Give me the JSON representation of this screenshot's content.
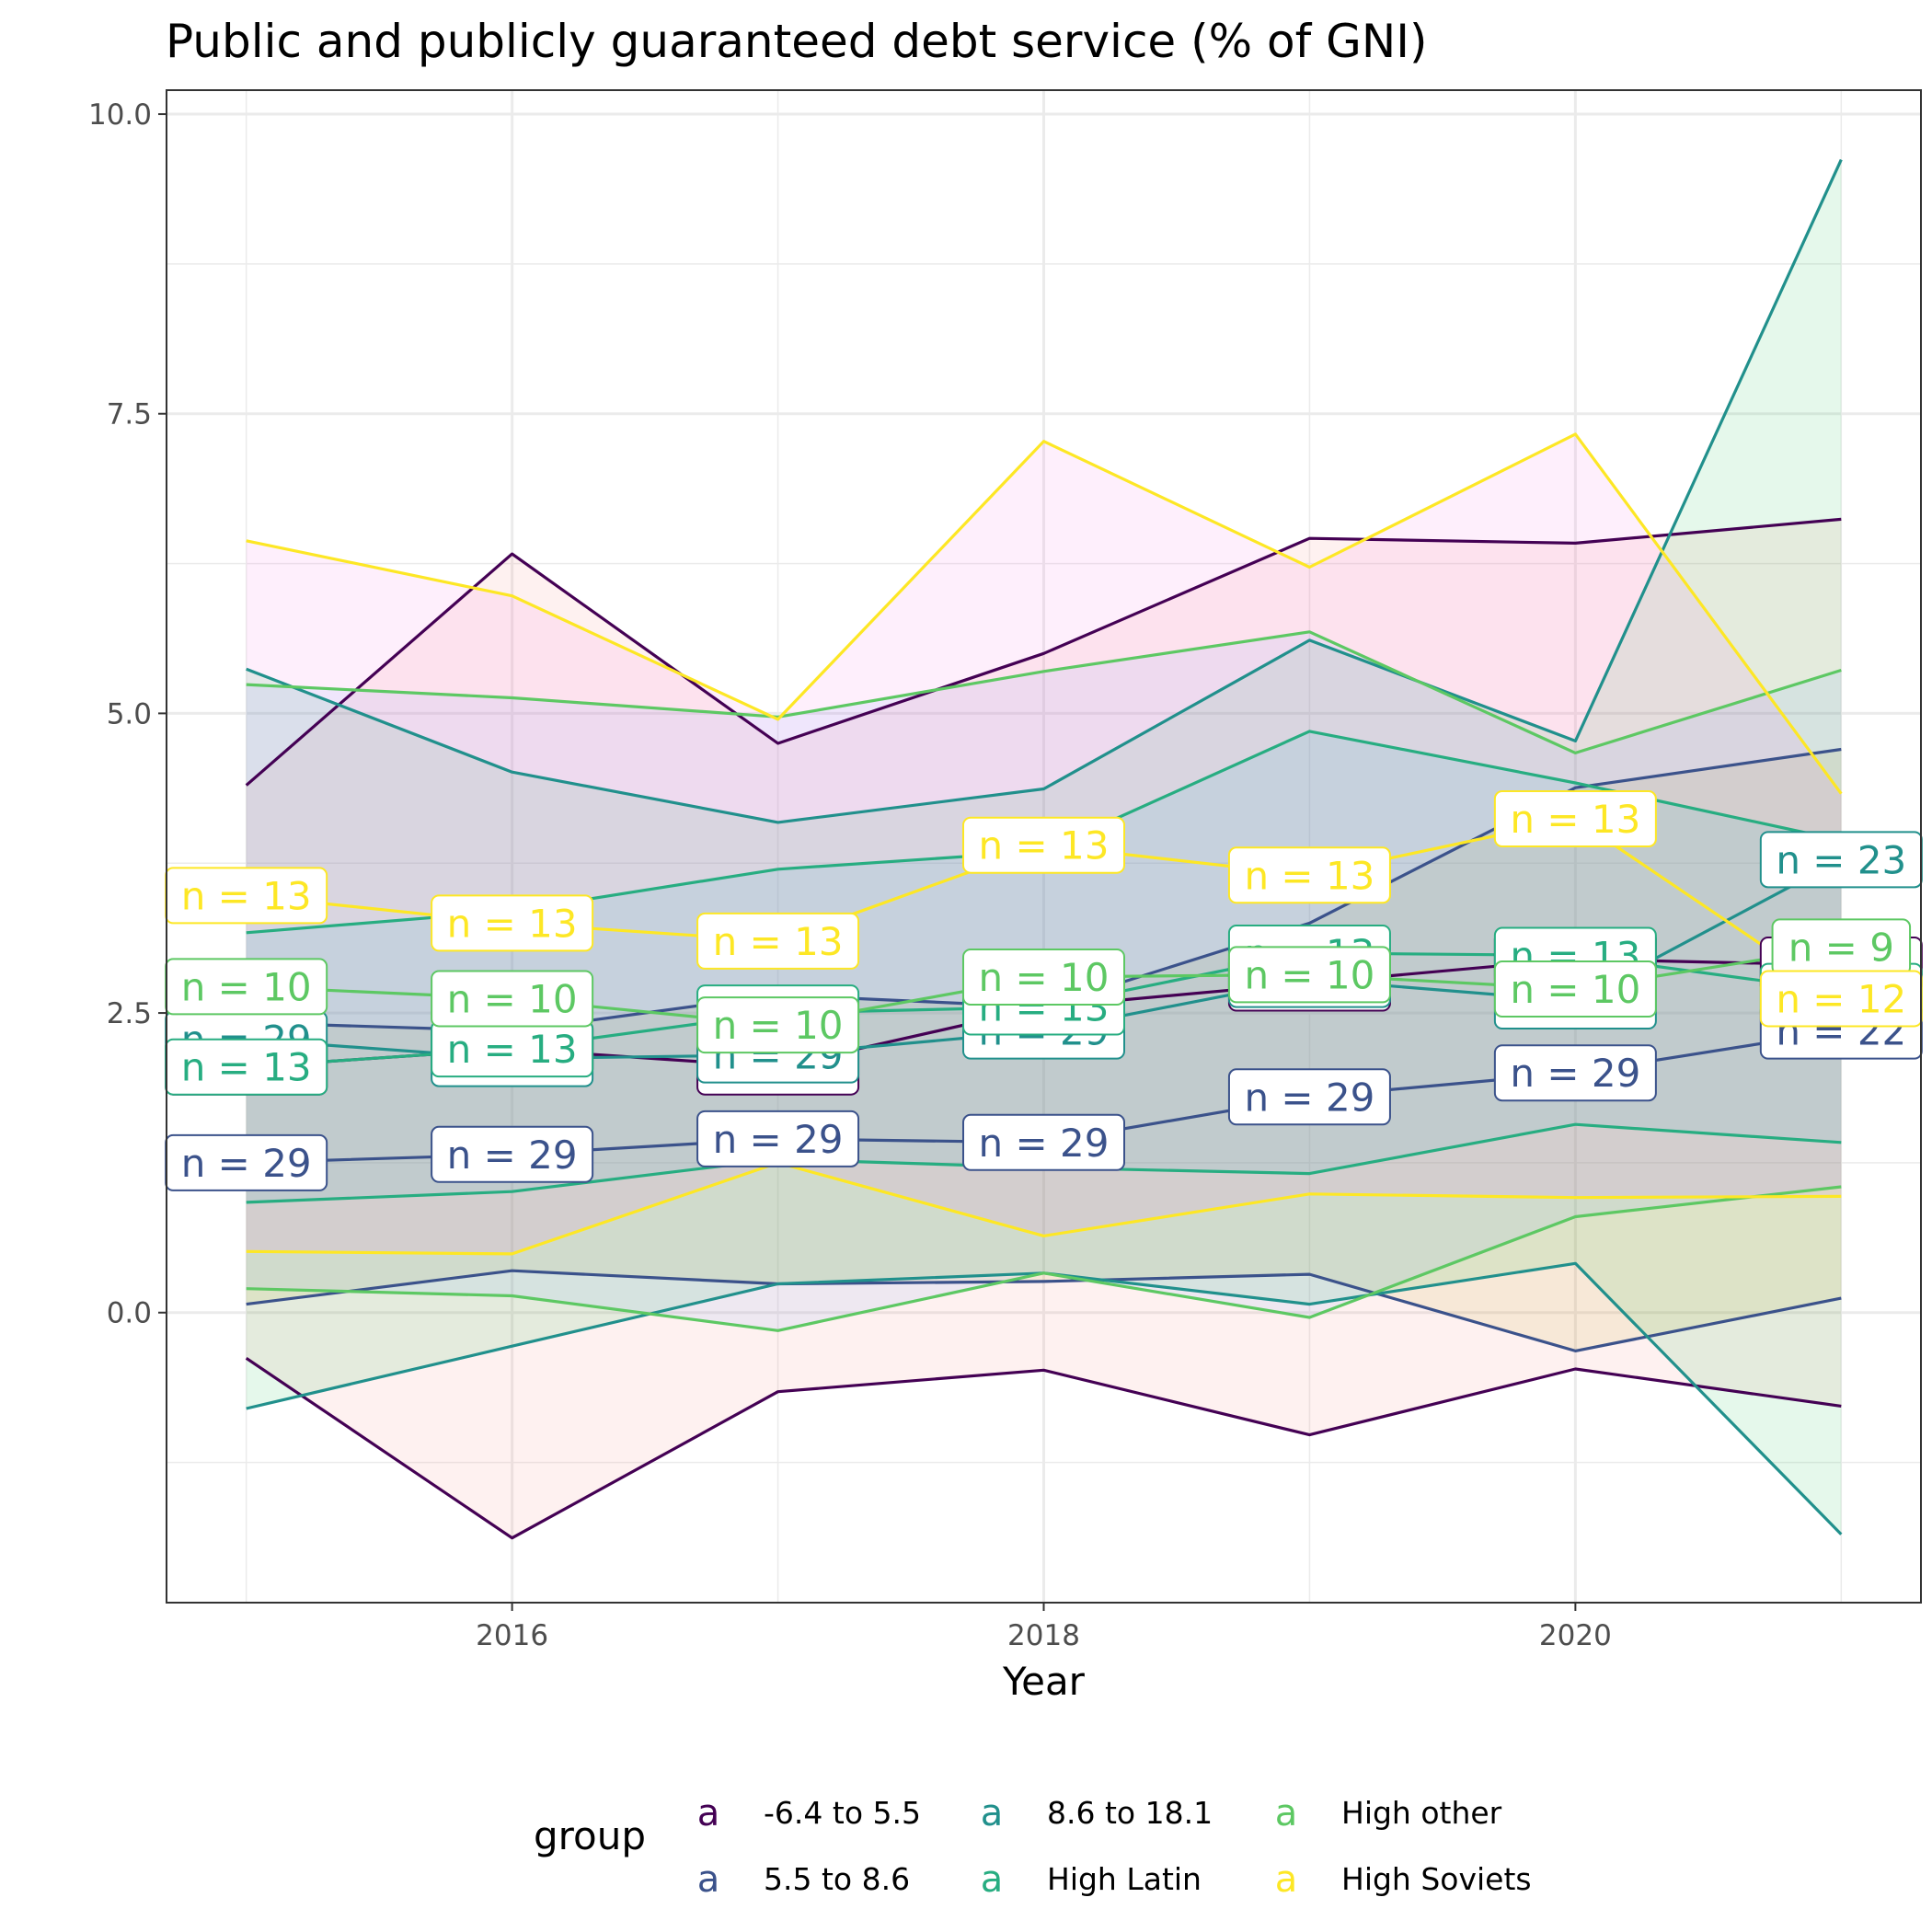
{
  "chart_data": {
    "type": "line",
    "title": "Public and publicly guaranteed debt service (% of GNI)",
    "xlabel": "Year",
    "ylabel": "",
    "xlim": [
      2014.7,
      2021.3
    ],
    "ylim": [
      -2.42,
      10.2
    ],
    "x_ticks": [
      2016,
      2018,
      2020
    ],
    "x_tick_labels": [
      "2016",
      "2018",
      "2020"
    ],
    "y_ticks": [
      0,
      2.5,
      5,
      7.5,
      10
    ],
    "y_tick_labels": [
      "0.0",
      "2.5",
      "5.0",
      "7.5",
      "10.0"
    ],
    "y_minor_ticks": [
      -1.25,
      1.25,
      3.75,
      6.25,
      8.75
    ],
    "grid": true,
    "legend": {
      "title": "group",
      "position": "bottom",
      "key_glyph": "a"
    },
    "x": [
      2015,
      2016,
      2017,
      2018,
      2019,
      2020,
      2021
    ],
    "series": [
      {
        "name": "-6.4 to 5.5",
        "color": "#440154",
        "fill": "#F8766D",
        "mean": [
          2.05,
          2.2,
          2.05,
          2.55,
          2.75,
          2.95,
          2.9
        ],
        "upper": [
          4.4,
          6.33,
          4.75,
          5.5,
          6.46,
          6.42,
          6.62
        ],
        "lower": [
          -0.38,
          -1.88,
          -0.66,
          -0.48,
          -1.02,
          -0.47,
          -0.78
        ],
        "n_labels": [
          "n = 29",
          "n = 29",
          "n = 29",
          "n = 29",
          "n = 29",
          "n = 29",
          "n = 18"
        ]
      },
      {
        "name": "5.5 to 8.6",
        "color": "#3B528B",
        "fill": "#B79F00",
        "mean": [
          1.25,
          1.32,
          1.45,
          1.42,
          1.8,
          2.0,
          2.35
        ],
        "upper": [
          2.42,
          2.35,
          2.65,
          2.55,
          3.25,
          4.38,
          4.7
        ],
        "lower": [
          0.07,
          0.35,
          0.24,
          0.26,
          0.32,
          -0.32,
          0.12
        ],
        "n_labels": [
          "n = 29",
          "n = 29",
          "n = 29",
          "n = 29",
          "n = 29",
          "n = 29",
          "n = 22"
        ]
      },
      {
        "name": "8.6 to 18.1",
        "color": "#21908C",
        "fill": "#00BA38",
        "mean": [
          2.28,
          2.12,
          2.15,
          2.35,
          2.78,
          2.6,
          3.78
        ],
        "upper": [
          5.37,
          4.51,
          4.09,
          4.37,
          5.61,
          4.77,
          9.62
        ],
        "lower": [
          -0.8,
          -0.28,
          0.24,
          0.33,
          0.07,
          0.41,
          -1.85
        ],
        "n_labels": [
          "n = 29",
          "n = 29",
          "n = 29",
          "n = 29",
          "n = 13",
          "n = 13",
          "n = 23"
        ]
      },
      {
        "name": "High Latin",
        "color": "#27AD81",
        "fill": "#00BFC4",
        "mean": [
          2.05,
          2.2,
          2.5,
          2.55,
          3.0,
          2.98,
          2.68
        ],
        "upper": [
          3.17,
          3.35,
          3.7,
          3.85,
          4.85,
          4.42,
          3.94
        ],
        "lower": [
          0.92,
          1.01,
          1.28,
          1.21,
          1.16,
          1.57,
          1.42
        ],
        "n_labels": [
          "n = 13",
          "n = 13",
          "n = 13",
          "n = 13",
          "n = 13",
          "n = 13",
          "n = 13"
        ]
      },
      {
        "name": "High other",
        "color": "#5DC863",
        "fill": "#619CFF",
        "mean": [
          2.72,
          2.62,
          2.4,
          2.8,
          2.82,
          2.7,
          3.05
        ],
        "upper": [
          5.24,
          5.13,
          4.97,
          5.35,
          5.68,
          4.67,
          5.36
        ],
        "lower": [
          0.2,
          0.14,
          -0.15,
          0.33,
          -0.04,
          0.8,
          1.05
        ],
        "n_labels": [
          "n = 10",
          "n = 10",
          "n = 10",
          "n = 10",
          "n = 10",
          "n = 10",
          "n = 9"
        ]
      },
      {
        "name": "High Soviets",
        "color": "#FDE725",
        "fill": "#F564E3",
        "mean": [
          3.48,
          3.25,
          3.1,
          3.9,
          3.65,
          4.12,
          2.62
        ],
        "upper": [
          6.44,
          5.98,
          4.95,
          7.27,
          6.22,
          7.33,
          4.33
        ],
        "lower": [
          0.51,
          0.49,
          1.25,
          0.64,
          0.99,
          0.96,
          0.97
        ],
        "n_labels": [
          "n = 13",
          "n = 13",
          "n = 13",
          "n = 13",
          "n = 13",
          "n = 13",
          "n = 12"
        ]
      }
    ]
  }
}
